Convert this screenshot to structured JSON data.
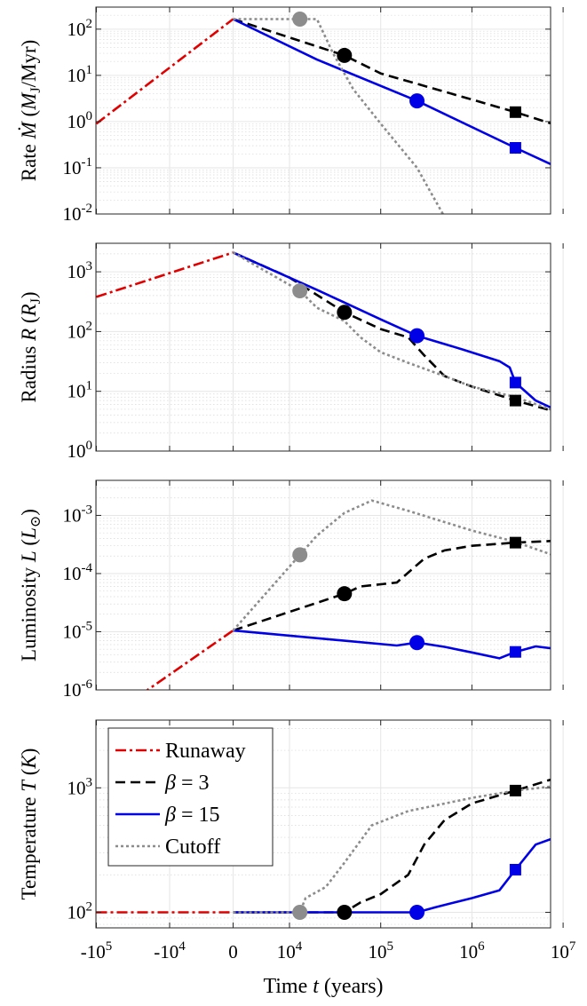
{
  "chart_data": {
    "type": "line",
    "x_axis": {
      "label": "Time t (years)",
      "scale": "symmetric-log",
      "ticks": [
        {
          "value": -100000,
          "label": "-10",
          "sup": "5"
        },
        {
          "value": -10000,
          "label": "-10",
          "sup": "4"
        },
        {
          "value": 0,
          "label": "0",
          "sup": ""
        },
        {
          "value": 10000,
          "label": "10",
          "sup": "4"
        },
        {
          "value": 100000,
          "label": "10",
          "sup": "5"
        },
        {
          "value": 1000000,
          "label": "10",
          "sup": "6"
        },
        {
          "value": 10000000,
          "label": "10",
          "sup": "7"
        }
      ]
    },
    "legend": {
      "location": "upper-left of bottom panel",
      "entries": [
        {
          "series": "runaway",
          "label": "Runaway"
        },
        {
          "series": "beta3",
          "label": "β = 3"
        },
        {
          "series": "beta15",
          "label": "β = 15"
        },
        {
          "series": "cutoff",
          "label": "Cutoff"
        }
      ]
    },
    "styles": {
      "runaway": {
        "color": "#e00000",
        "dash": "12,4,3,4"
      },
      "beta3": {
        "color": "#000000",
        "dash": "11,6"
      },
      "beta15": {
        "color": "#0000e6",
        "dash": ""
      },
      "cutoff": {
        "color": "#8c8c8c",
        "dash": "3,3"
      }
    },
    "panels": [
      {
        "ylabel": "Rate Ṁ (M_J/Myr)",
        "yscale": "log",
        "ylim": [
          0.01,
          300
        ],
        "yticks": [
          {
            "value": 100,
            "label": "10",
            "sup": "2"
          },
          {
            "value": 10,
            "label": "10",
            "sup": "1"
          },
          {
            "value": 1,
            "label": "10",
            "sup": "0"
          },
          {
            "value": 0.1,
            "label": "10",
            "sup": "-1"
          },
          {
            "value": 0.01,
            "label": "10",
            "sup": "-2"
          }
        ],
        "series": {
          "runaway": [
            [
              -100000,
              0.9
            ],
            [
              0,
              165
            ]
          ],
          "beta3": [
            [
              0,
              165
            ],
            [
              40000,
              27
            ],
            [
              100000,
              11
            ],
            [
              1000000,
              3
            ],
            [
              3000000,
              1.6
            ],
            [
              10000000,
              0.75
            ]
          ],
          "beta15": [
            [
              0,
              165
            ],
            [
              20000,
              22
            ],
            [
              250000,
              2.8
            ],
            [
              3000000,
              0.27
            ],
            [
              10000000,
              0.09
            ]
          ],
          "cutoff": [
            [
              0,
              165
            ],
            [
              13000,
              165
            ],
            [
              20000,
              165
            ],
            [
              30000,
              30
            ],
            [
              50000,
              5
            ],
            [
              100000,
              0.9
            ],
            [
              250000,
              0.1
            ],
            [
              480000,
              0.01
            ]
          ]
        },
        "markers": [
          {
            "series": "cutoff",
            "shape": "circle",
            "x": 13000,
            "y": 165
          },
          {
            "series": "beta3",
            "shape": "circle",
            "x": 40000,
            "y": 27
          },
          {
            "series": "beta15",
            "shape": "circle",
            "x": 250000,
            "y": 2.8
          },
          {
            "series": "beta3",
            "shape": "square",
            "x": 3000000,
            "y": 1.6
          },
          {
            "series": "beta15",
            "shape": "square",
            "x": 3000000,
            "y": 0.27
          }
        ]
      },
      {
        "ylabel": "Radius R (R_J)",
        "yscale": "log",
        "ylim": [
          1,
          3000
        ],
        "yticks": [
          {
            "value": 1000,
            "label": "10",
            "sup": "3"
          },
          {
            "value": 100,
            "label": "10",
            "sup": "2"
          },
          {
            "value": 10,
            "label": "10",
            "sup": "1"
          },
          {
            "value": 1,
            "label": "10",
            "sup": "0"
          }
        ],
        "series": {
          "runaway": [
            [
              -100000,
              380
            ],
            [
              0,
              2100
            ]
          ],
          "beta3": [
            [
              0,
              2100
            ],
            [
              10000,
              800
            ],
            [
              40000,
              210
            ],
            [
              100000,
              110
            ],
            [
              200000,
              80
            ],
            [
              300000,
              40
            ],
            [
              500000,
              18
            ],
            [
              1000000,
              12
            ],
            [
              3000000,
              7
            ],
            [
              10000000,
              4.2
            ]
          ],
          "beta15": [
            [
              0,
              2100
            ],
            [
              20000,
              500
            ],
            [
              100000,
              160
            ],
            [
              250000,
              85
            ],
            [
              800000,
              50
            ],
            [
              2000000,
              32
            ],
            [
              2600000,
              25
            ],
            [
              3000000,
              14
            ],
            [
              5000000,
              7
            ],
            [
              10000000,
              4.3
            ]
          ],
          "cutoff": [
            [
              0,
              2100
            ],
            [
              13000,
              480
            ],
            [
              20000,
              250
            ],
            [
              40000,
              150
            ],
            [
              60000,
              80
            ],
            [
              100000,
              45
            ],
            [
              200000,
              30
            ],
            [
              500000,
              18
            ],
            [
              1000000,
              12
            ],
            [
              3000000,
              8
            ],
            [
              10000000,
              4.2
            ]
          ]
        },
        "markers": [
          {
            "series": "cutoff",
            "shape": "circle",
            "x": 13000,
            "y": 480
          },
          {
            "series": "beta3",
            "shape": "circle",
            "x": 40000,
            "y": 210
          },
          {
            "series": "beta15",
            "shape": "circle",
            "x": 250000,
            "y": 85
          },
          {
            "series": "beta15",
            "shape": "square",
            "x": 3000000,
            "y": 14
          },
          {
            "series": "beta3",
            "shape": "square",
            "x": 3000000,
            "y": 7
          }
        ]
      },
      {
        "ylabel": "Luminosity L (L_⊙)",
        "yscale": "log",
        "ylim": [
          1e-06,
          0.004
        ],
        "yticks": [
          {
            "value": 0.001,
            "label": "10",
            "sup": "-3"
          },
          {
            "value": 0.0001,
            "label": "10",
            "sup": "-4"
          },
          {
            "value": 1e-05,
            "label": "10",
            "sup": "-5"
          },
          {
            "value": 1e-06,
            "label": "10",
            "sup": "-6"
          }
        ],
        "series": {
          "runaway": [
            [
              -100000,
              2e-08
            ],
            [
              -20000,
              1e-06
            ],
            [
              0,
              1.05e-05
            ]
          ],
          "beta3": [
            [
              0,
              1.05e-05
            ],
            [
              40000,
              4.5e-05
            ],
            [
              60000,
              6e-05
            ],
            [
              150000,
              7e-05
            ],
            [
              300000,
              0.00018
            ],
            [
              500000,
              0.00025
            ],
            [
              1000000,
              0.0003
            ],
            [
              3000000,
              0.00034
            ],
            [
              10000000,
              0.00037
            ]
          ],
          "beta15": [
            [
              0,
              1.05e-05
            ],
            [
              150000,
              5.8e-06
            ],
            [
              250000,
              6.5e-06
            ],
            [
              500000,
              5.5e-06
            ],
            [
              1000000,
              4.4e-06
            ],
            [
              2000000,
              3.5e-06
            ],
            [
              3000000,
              4.5e-06
            ],
            [
              5000000,
              5.6e-06
            ],
            [
              10000000,
              4.9e-06
            ]
          ],
          "cutoff": [
            [
              0,
              1.05e-05
            ],
            [
              13000,
              0.00021
            ],
            [
              20000,
              0.00045
            ],
            [
              40000,
              0.0011
            ],
            [
              80000,
              0.0018
            ],
            [
              200000,
              0.0012
            ],
            [
              1000000,
              0.00055
            ],
            [
              3000000,
              0.00035
            ],
            [
              10000000,
              0.00018
            ]
          ]
        },
        "markers": [
          {
            "series": "cutoff",
            "shape": "circle",
            "x": 13000,
            "y": 0.00021
          },
          {
            "series": "beta3",
            "shape": "circle",
            "x": 40000,
            "y": 4.5e-05
          },
          {
            "series": "beta15",
            "shape": "circle",
            "x": 250000,
            "y": 6.5e-06
          },
          {
            "series": "beta3",
            "shape": "square",
            "x": 3000000,
            "y": 0.00034
          },
          {
            "series": "beta15",
            "shape": "square",
            "x": 3000000,
            "y": 4.5e-06
          }
        ]
      },
      {
        "ylabel": "Temperature T (K)",
        "yscale": "log",
        "ylim": [
          75,
          3500
        ],
        "yticks": [
          {
            "value": 1000,
            "label": "10",
            "sup": "3"
          },
          {
            "value": 100,
            "label": "10",
            "sup": "2"
          }
        ],
        "series": {
          "runaway": [
            [
              -100000,
              100
            ],
            [
              0,
              100
            ]
          ],
          "beta3": [
            [
              0,
              100
            ],
            [
              40000,
              100
            ],
            [
              60000,
              120
            ],
            [
              100000,
              140
            ],
            [
              200000,
              200
            ],
            [
              300000,
              350
            ],
            [
              500000,
              550
            ],
            [
              1000000,
              750
            ],
            [
              3000000,
              950
            ],
            [
              10000000,
              1250
            ]
          ],
          "beta15": [
            [
              0,
              100
            ],
            [
              250000,
              100
            ],
            [
              400000,
              110
            ],
            [
              1000000,
              130
            ],
            [
              2000000,
              150
            ],
            [
              3000000,
              220
            ],
            [
              5000000,
              350
            ],
            [
              10000000,
              420
            ]
          ],
          "cutoff": [
            [
              0,
              100
            ],
            [
              13000,
              100
            ],
            [
              15000,
              130
            ],
            [
              25000,
              160
            ],
            [
              40000,
              250
            ],
            [
              80000,
              500
            ],
            [
              200000,
              650
            ],
            [
              1000000,
              830
            ],
            [
              3000000,
              950
            ],
            [
              10000000,
              1050
            ]
          ]
        },
        "markers": [
          {
            "series": "cutoff",
            "shape": "circle",
            "x": 13000,
            "y": 100
          },
          {
            "series": "beta3",
            "shape": "circle",
            "x": 40000,
            "y": 100
          },
          {
            "series": "beta15",
            "shape": "circle",
            "x": 250000,
            "y": 100
          },
          {
            "series": "beta3",
            "shape": "square",
            "x": 3000000,
            "y": 950
          },
          {
            "series": "beta15",
            "shape": "square",
            "x": 3000000,
            "y": 220
          }
        ]
      }
    ]
  }
}
